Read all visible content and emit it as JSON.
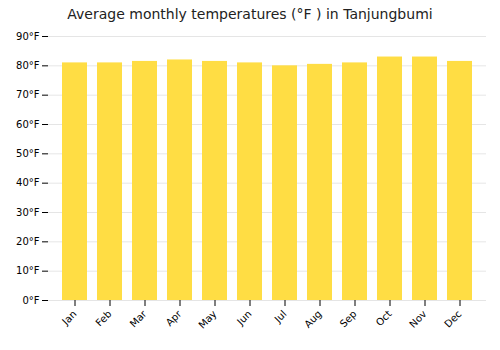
{
  "chart_data": {
    "type": "bar",
    "title": "Average monthly temperatures (°F ) in Tanjungbumi",
    "categories": [
      "Jan",
      "Feb",
      "Mar",
      "Apr",
      "May",
      "Jun",
      "Jul",
      "Aug",
      "Sep",
      "Oct",
      "Nov",
      "Dec"
    ],
    "values": [
      81,
      81,
      81.5,
      82,
      81.5,
      81,
      80,
      80.5,
      81,
      83,
      83,
      81.5
    ],
    "color": "#FFDD44",
    "ylim": [
      0,
      90
    ],
    "yticks": [
      {
        "value": 0,
        "label": "0°F"
      },
      {
        "value": 10,
        "label": "10°F"
      },
      {
        "value": 20,
        "label": "20°F"
      },
      {
        "value": 30,
        "label": "30°F"
      },
      {
        "value": 40,
        "label": "40°F"
      },
      {
        "value": 50,
        "label": "50°F"
      },
      {
        "value": 60,
        "label": "60°F"
      },
      {
        "value": 70,
        "label": "70°F"
      },
      {
        "value": 80,
        "label": "80°F"
      },
      {
        "value": 90,
        "label": "90°F"
      }
    ],
    "grid": true
  }
}
